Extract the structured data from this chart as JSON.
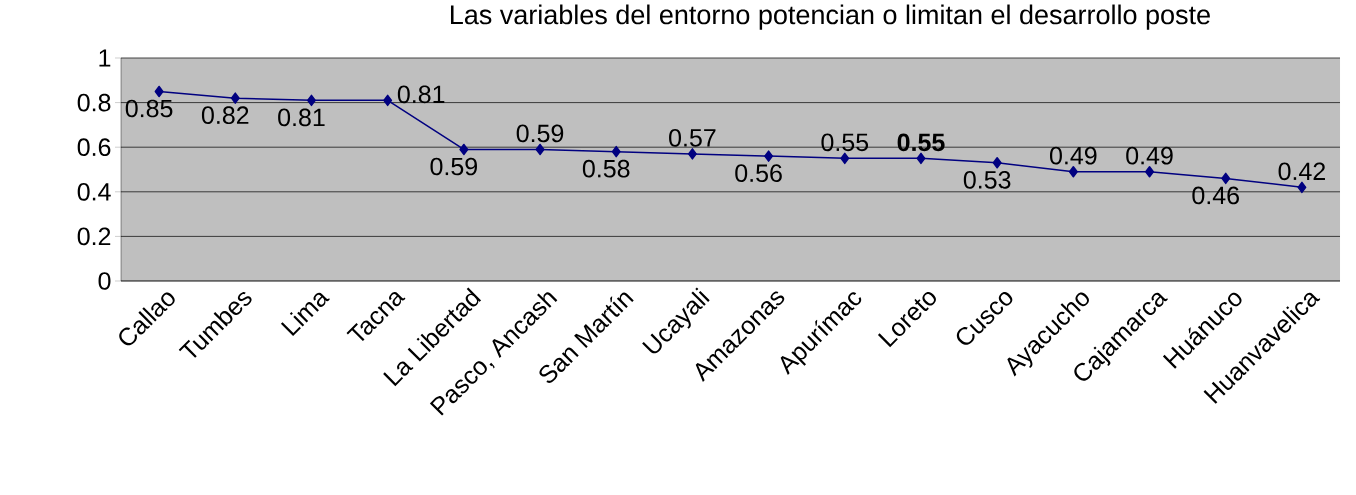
{
  "chart_data": {
    "type": "line",
    "title": "Las variables del entorno potencian o limitan el desarrollo poste",
    "categories": [
      "Callao",
      "Tumbes",
      "Lima",
      "Tacna",
      "La Libertad",
      "Pasco, Ancash",
      "San Martín",
      "Ucayali",
      "Amazonas",
      "Apurímac",
      "Loreto",
      "Cusco",
      "Ayacucho",
      "Cajamarca",
      "Huánuco",
      "Huanvavelica"
    ],
    "values": [
      0.85,
      0.82,
      0.81,
      0.81,
      0.59,
      0.59,
      0.58,
      0.57,
      0.56,
      0.55,
      0.55,
      0.53,
      0.49,
      0.49,
      0.46,
      0.42
    ],
    "value_labels": [
      "0.85",
      "0.82",
      "0.81",
      "0.81",
      "0.59",
      "0.59",
      "0.58",
      "0.57",
      "0.56",
      "0.55",
      "**0.55**",
      "0.53",
      "0.49",
      "0.49",
      "0.46",
      "0.42"
    ],
    "color": "#000080",
    "marker": "diamond",
    "line_style": "solid",
    "grid": "y",
    "ylim": [
      0,
      1
    ],
    "yticks": [
      0,
      0.2,
      0.4,
      0.6,
      0.8,
      1
    ]
  }
}
